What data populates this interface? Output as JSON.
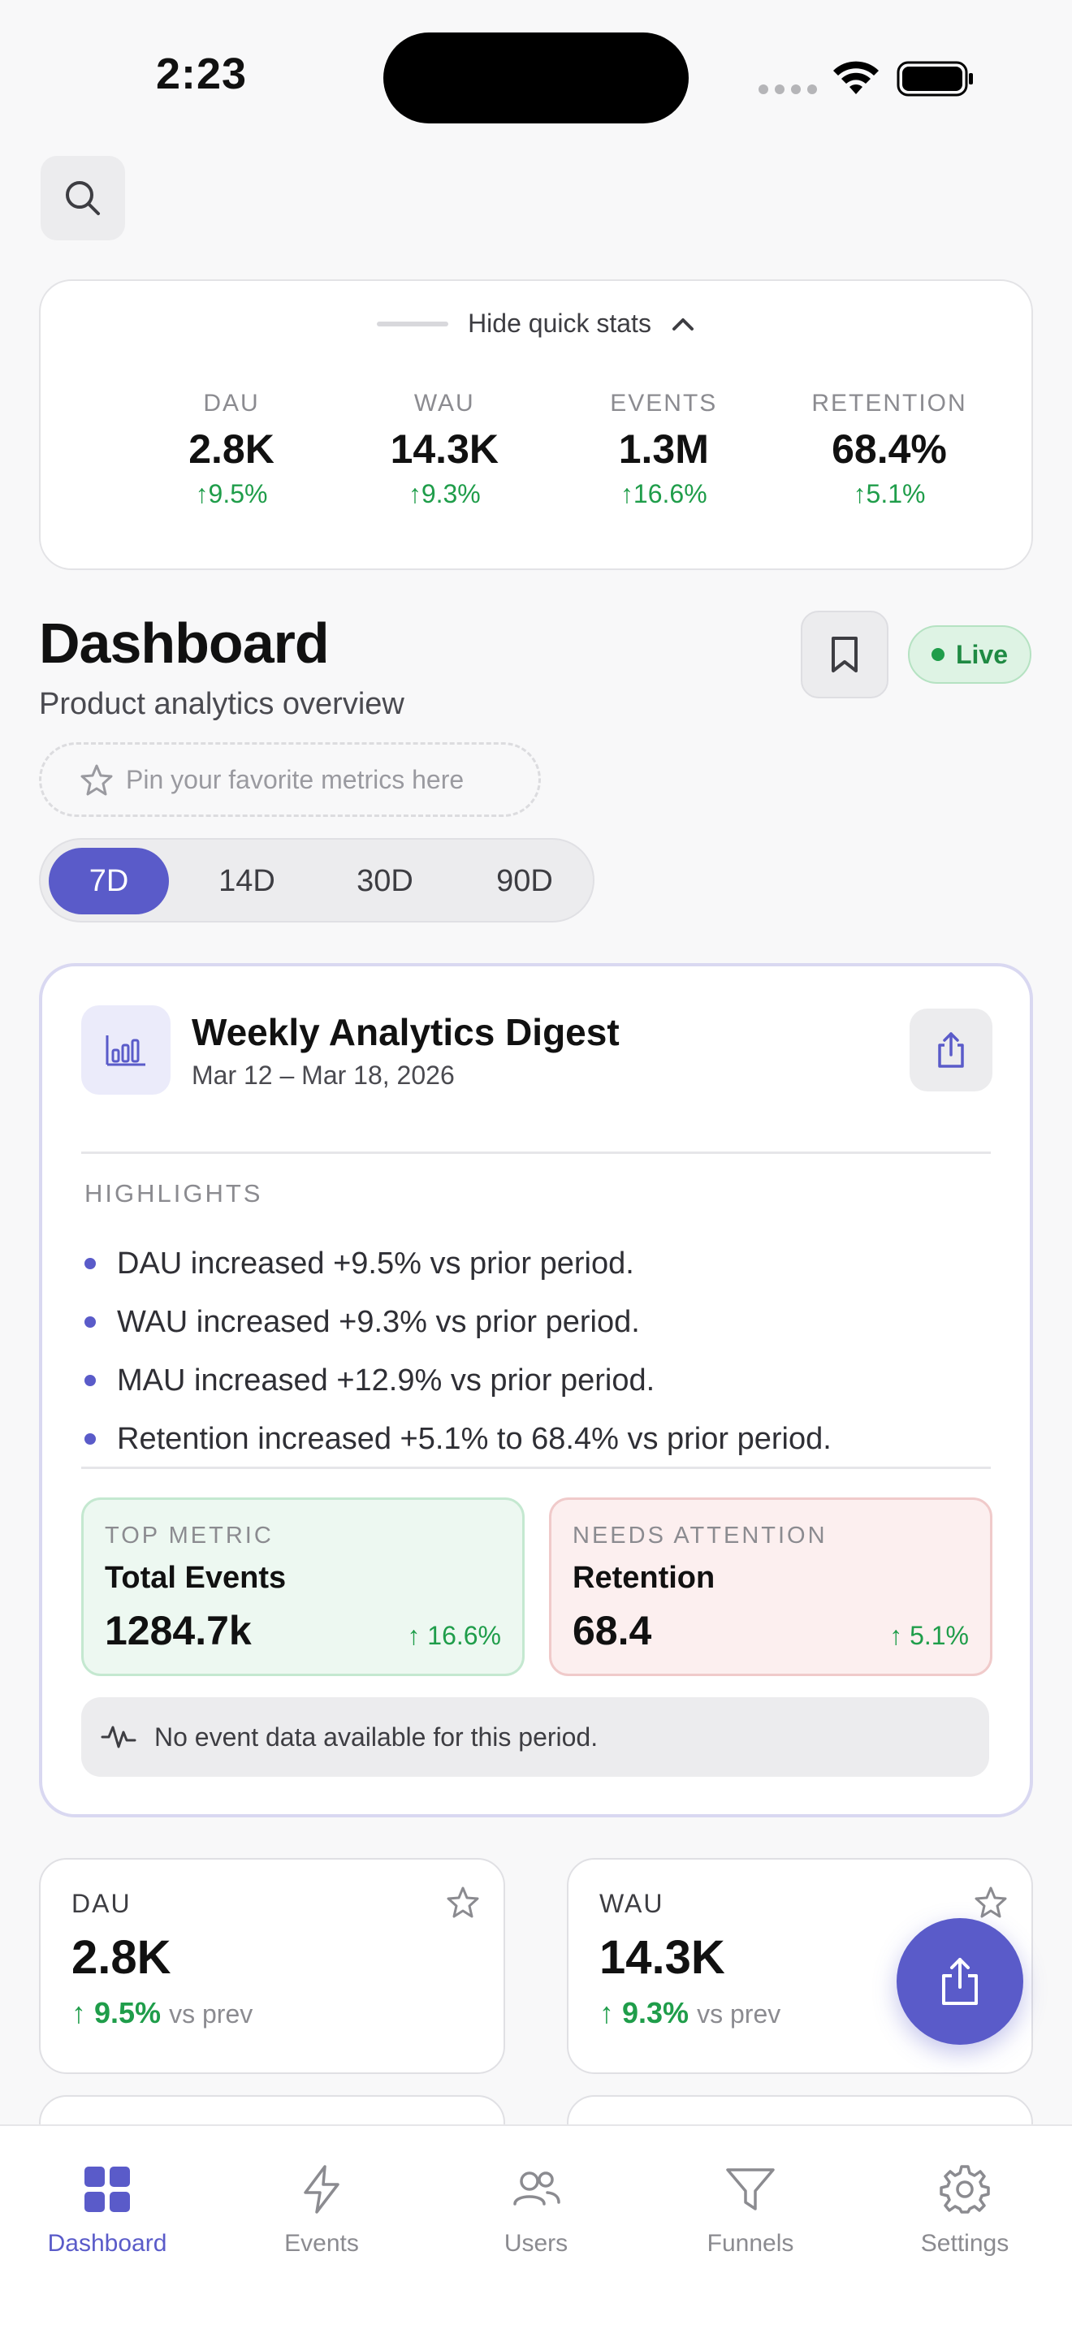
{
  "status_bar": {
    "time": "2:23"
  },
  "quick_stats": {
    "toggle_label": "Hide quick stats",
    "items": [
      {
        "label": "DAU",
        "value": "2.8K",
        "delta": "9.5%"
      },
      {
        "label": "WAU",
        "value": "14.3K",
        "delta": "9.3%"
      },
      {
        "label": "EVENTS",
        "value": "1.3M",
        "delta": "16.6%"
      },
      {
        "label": "RETENTION",
        "value": "68.4%",
        "delta": "5.1%"
      }
    ]
  },
  "header": {
    "title": "Dashboard",
    "subtitle": "Product analytics overview",
    "live_label": "Live",
    "pin_placeholder": "Pin your favorite metrics here"
  },
  "range_tabs": {
    "items": [
      "7D",
      "14D",
      "30D",
      "90D"
    ],
    "selected": "7D"
  },
  "digest": {
    "title": "Weekly Analytics Digest",
    "date_range": "Mar 12 – Mar 18, 2026",
    "highlights_label": "HIGHLIGHTS",
    "highlights": [
      "DAU increased +9.5% vs prior period.",
      "WAU increased +9.3% vs prior period.",
      "MAU increased +12.9% vs prior period.",
      "Retention increased +5.1% to 68.4% vs prior period."
    ],
    "top_metric": {
      "label": "TOP METRIC",
      "name": "Total Events",
      "value": "1284.7k",
      "delta": "16.6%"
    },
    "needs_attention": {
      "label": "NEEDS ATTENTION",
      "name": "Retention",
      "value": "68.4",
      "delta": "5.1%"
    },
    "no_data_text": "No event data available for this period."
  },
  "metric_cards": [
    {
      "label": "DAU",
      "value": "2.8K",
      "delta": "9.5%",
      "suffix": "vs prev"
    },
    {
      "label": "WAU",
      "value": "14.3K",
      "delta": "9.3%",
      "suffix": "vs prev"
    }
  ],
  "tabbar": {
    "items": [
      "Dashboard",
      "Events",
      "Users",
      "Funnels",
      "Settings"
    ],
    "active": "Dashboard"
  },
  "colors": {
    "accent": "#5a5bc9",
    "positive": "#1f9d4a",
    "background": "#f8f8f9"
  }
}
